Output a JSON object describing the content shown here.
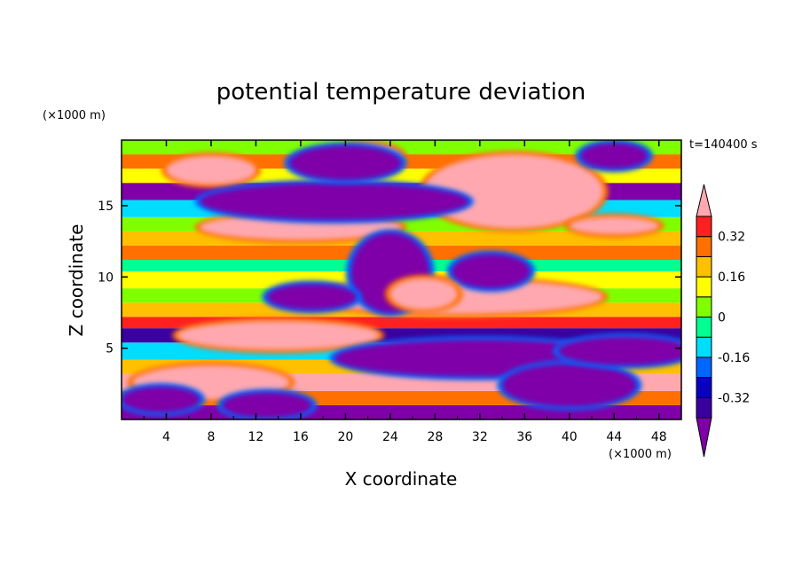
{
  "chart_data": {
    "type": "heatmap",
    "title": "potential temperature deviation",
    "xlabel": "X coordinate",
    "ylabel": "Z coordinate",
    "x_unit": "(×1000 m)",
    "y_unit": "(×1000 m)",
    "time_label": "t=140400 s",
    "xlim": [
      0,
      50
    ],
    "ylim": [
      0,
      19.6
    ],
    "x_ticks": [
      4,
      8,
      12,
      16,
      20,
      24,
      28,
      32,
      36,
      40,
      44,
      48
    ],
    "y_ticks": [
      5,
      10,
      15
    ],
    "grid": false,
    "legend": "right",
    "colorbar": {
      "levels": [
        -0.4,
        -0.32,
        -0.24,
        -0.16,
        -0.08,
        0,
        0.08,
        0.16,
        0.24,
        0.32,
        0.4
      ],
      "labeled_ticks": [
        -0.32,
        -0.16,
        0,
        0.16,
        0.32
      ],
      "tick_labels": [
        "-0.32",
        "-0.16",
        "0",
        "0.16",
        "0.32"
      ],
      "colors": [
        "#7f00a8",
        "#3a00a0",
        "#0a00c0",
        "#0066ff",
        "#00ddff",
        "#00ff90",
        "#80ff00",
        "#ffff00",
        "#ffc000",
        "#ff7000",
        "#ff2020",
        "#ffa8b0"
      ],
      "extend": "both"
    },
    "bands": [
      {
        "z": [
          0.0,
          1.0
        ],
        "value": -0.42
      },
      {
        "z": [
          1.0,
          2.0
        ],
        "value": 0.26
      },
      {
        "z": [
          2.0,
          3.2
        ],
        "value": 0.45
      },
      {
        "z": [
          3.2,
          4.2
        ],
        "value": 0.2
      },
      {
        "z": [
          4.2,
          5.4
        ],
        "value": -0.1
      },
      {
        "z": [
          5.4,
          6.4
        ],
        "value": -0.4
      },
      {
        "z": [
          6.4,
          7.2
        ],
        "value": 0.36
      },
      {
        "z": [
          7.2,
          8.2
        ],
        "value": 0.2
      },
      {
        "z": [
          8.2,
          9.2
        ],
        "value": 0.04
      },
      {
        "z": [
          9.2,
          10.4
        ],
        "value": 0.1
      },
      {
        "z": [
          10.4,
          11.2
        ],
        "value": -0.08
      },
      {
        "z": [
          11.2,
          12.2
        ],
        "value": 0.3
      },
      {
        "z": [
          12.2,
          13.2
        ],
        "value": 0.18
      },
      {
        "z": [
          13.2,
          14.2
        ],
        "value": 0.06
      },
      {
        "z": [
          14.2,
          15.4
        ],
        "value": -0.12
      },
      {
        "z": [
          15.4,
          16.6
        ],
        "value": -0.42
      },
      {
        "z": [
          16.6,
          17.6
        ],
        "value": 0.12
      },
      {
        "z": [
          17.6,
          18.6
        ],
        "value": 0.28
      },
      {
        "z": [
          18.6,
          19.6
        ],
        "value": 0.02
      }
    ],
    "features": [
      {
        "type": "blob",
        "cx": 30,
        "cy": 8.6,
        "rx": 13,
        "ry": 1.2,
        "value": 0.45
      },
      {
        "type": "blob",
        "cx": 14,
        "cy": 5.9,
        "rx": 9,
        "ry": 1.0,
        "value": 0.45
      },
      {
        "type": "blob",
        "cx": 8,
        "cy": 2.6,
        "rx": 7,
        "ry": 1.2,
        "value": 0.45
      },
      {
        "type": "blob",
        "cx": 3.5,
        "cy": 1.4,
        "rx": 3.5,
        "ry": 0.9,
        "value": -0.42
      },
      {
        "type": "blob",
        "cx": 13,
        "cy": 1.0,
        "rx": 4,
        "ry": 0.9,
        "value": -0.42
      },
      {
        "type": "blob",
        "cx": 32,
        "cy": 4.3,
        "rx": 13,
        "ry": 1.3,
        "value": -0.42
      },
      {
        "type": "blob",
        "cx": 40,
        "cy": 2.4,
        "rx": 6,
        "ry": 1.5,
        "value": -0.42
      },
      {
        "type": "blob",
        "cx": 45,
        "cy": 4.8,
        "rx": 6,
        "ry": 1.0,
        "value": -0.42
      },
      {
        "type": "blob",
        "cx": 16,
        "cy": 13.5,
        "rx": 9,
        "ry": 0.9,
        "value": 0.45
      },
      {
        "type": "blob",
        "cx": 35,
        "cy": 16.0,
        "rx": 8,
        "ry": 2.6,
        "value": 0.45
      },
      {
        "type": "blob",
        "cx": 8,
        "cy": 17.5,
        "rx": 4,
        "ry": 1.0,
        "value": 0.45
      },
      {
        "type": "blob",
        "cx": 22,
        "cy": 18.4,
        "rx": 3,
        "ry": 0.9,
        "value": 0.45
      },
      {
        "type": "blob",
        "cx": 19,
        "cy": 15.3,
        "rx": 12,
        "ry": 1.3,
        "value": -0.42
      },
      {
        "type": "blob",
        "cx": 20,
        "cy": 18.0,
        "rx": 5,
        "ry": 1.2,
        "value": -0.42
      },
      {
        "type": "blob",
        "cx": 44,
        "cy": 18.5,
        "rx": 3,
        "ry": 0.9,
        "value": -0.42
      },
      {
        "type": "blob",
        "cx": 24,
        "cy": 10.3,
        "rx": 3.5,
        "ry": 2.8,
        "value": -0.42
      },
      {
        "type": "blob",
        "cx": 17,
        "cy": 8.6,
        "rx": 4,
        "ry": 0.9,
        "value": -0.42
      },
      {
        "type": "blob",
        "cx": 33,
        "cy": 10.4,
        "rx": 3.5,
        "ry": 1.2,
        "value": -0.42
      },
      {
        "type": "blob",
        "cx": 27,
        "cy": 8.8,
        "rx": 3,
        "ry": 1.1,
        "value": 0.45
      },
      {
        "type": "blob",
        "cx": 44,
        "cy": 13.6,
        "rx": 4,
        "ry": 0.6,
        "value": 0.45
      }
    ]
  }
}
